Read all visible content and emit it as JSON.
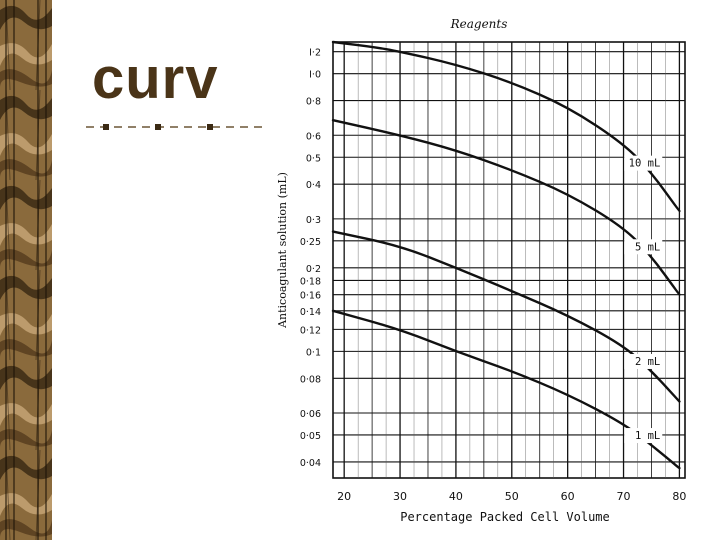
{
  "slide": {
    "title": "curv",
    "colors": {
      "title": "#4a3418",
      "marble_dark": "#3b2a14",
      "marble_mid": "#8a6a3c",
      "marble_light": "#c8a878",
      "paper": "#ffffff",
      "ink": "#111111"
    },
    "decoration": "brown-marble-sidebar"
  },
  "chart_data": {
    "type": "line",
    "title": "Reagents",
    "xlabel": "Percentage Packed Cell Volume",
    "ylabel": "Anticoagulant solution (mL)",
    "x_ticks": [
      20,
      25,
      30,
      35,
      40,
      45,
      50,
      55,
      60,
      65,
      70,
      75,
      80
    ],
    "x_tick_labels": [
      "20",
      "30",
      "40",
      "50",
      "60",
      "70",
      "80"
    ],
    "xlim": [
      18,
      81
    ],
    "y_scale": "log",
    "y_ticks": [
      1.2,
      1.0,
      0.8,
      0.6,
      0.5,
      0.4,
      0.3,
      0.25,
      0.2,
      0.18,
      0.16,
      0.14,
      0.12,
      0.1,
      0.08,
      0.06,
      0.05,
      0.04
    ],
    "y_tick_labels": [
      "I·2",
      "I·0",
      "0·8",
      "0·6",
      "0·5",
      "0·4",
      "0·3",
      "0·25",
      "0·2",
      "0·18",
      "0·16",
      "0·14",
      "0·12",
      "0·1",
      "0·08",
      "0·06",
      "0·05",
      "0·04"
    ],
    "ylim": [
      0.035,
      1.3
    ],
    "grid": true,
    "legend": "none",
    "series": [
      {
        "name": "10 mL",
        "x": [
          18,
          25,
          30,
          40,
          50,
          60,
          70,
          75,
          80
        ],
        "y": [
          1.3,
          1.25,
          1.2,
          1.08,
          0.93,
          0.76,
          0.56,
          0.44,
          0.32
        ]
      },
      {
        "name": "5 mL",
        "x": [
          18,
          30,
          40,
          50,
          60,
          70,
          75,
          80
        ],
        "y": [
          0.68,
          0.6,
          0.53,
          0.45,
          0.37,
          0.28,
          0.22,
          0.16
        ]
      },
      {
        "name": "2 mL",
        "x": [
          18,
          30,
          40,
          50,
          60,
          70,
          75,
          80
        ],
        "y": [
          0.27,
          0.24,
          0.2,
          0.165,
          0.135,
          0.105,
          0.085,
          0.066
        ]
      },
      {
        "name": "1 mL",
        "x": [
          18,
          30,
          40,
          50,
          60,
          70,
          75,
          80
        ],
        "y": [
          0.14,
          0.12,
          0.1,
          0.085,
          0.07,
          0.055,
          0.046,
          0.038
        ]
      }
    ]
  }
}
